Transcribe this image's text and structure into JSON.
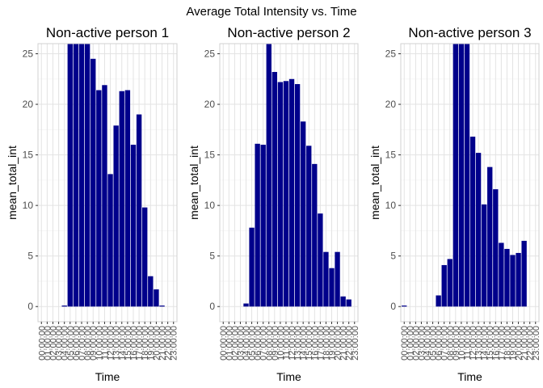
{
  "figure_title": "Average Total Intensity vs. Time",
  "chart_data": [
    {
      "type": "bar",
      "title": "Non-active person 1",
      "xlabel": "Time",
      "ylabel": "mean_total_int",
      "ylim": [
        -1.5,
        26
      ],
      "yticks": [
        0,
        5,
        10,
        15,
        20,
        25
      ],
      "bar_color": "#00008B",
      "categories": [
        "00:00:00",
        "01:00:00",
        "02:00:00",
        "03:00:00",
        "04:00:00",
        "05:00:00",
        "06:00:00",
        "07:00:00",
        "08:00:00",
        "09:00:00",
        "10:00:00",
        "11:00:00",
        "12:00:00",
        "13:00:00",
        "14:00:00",
        "15:00:00",
        "16:00:00",
        "17:00:00",
        "18:00:00",
        "19:00:00",
        "20:00:00",
        "21:00:00",
        "22:00:00",
        "23:00:00"
      ],
      "values": [
        0,
        0,
        0,
        0,
        0.1,
        27,
        27,
        27,
        27,
        24.5,
        21.4,
        21.9,
        13.1,
        17.9,
        21.3,
        21.4,
        16.0,
        19.0,
        9.8,
        3.0,
        1.7,
        0.1,
        null,
        null
      ],
      "grid": true
    },
    {
      "type": "bar",
      "title": "Non-active person 2",
      "xlabel": "Time",
      "ylabel": "mean_total_int",
      "ylim": [
        -1.5,
        26
      ],
      "yticks": [
        0,
        5,
        10,
        15,
        20,
        25
      ],
      "bar_color": "#00008B",
      "categories": [
        "00:00:00",
        "01:00:00",
        "02:00:00",
        "03:00:00",
        "04:00:00",
        "05:00:00",
        "06:00:00",
        "07:00:00",
        "08:00:00",
        "09:00:00",
        "10:00:00",
        "11:00:00",
        "12:00:00",
        "13:00:00",
        "14:00:00",
        "15:00:00",
        "16:00:00",
        "17:00:00",
        "18:00:00",
        "19:00:00",
        "20:00:00",
        "21:00:00",
        "22:00:00",
        "23:00:00"
      ],
      "values": [
        0,
        0,
        0,
        0,
        0.3,
        7.8,
        16.1,
        16.0,
        26.5,
        23.2,
        22.2,
        22.3,
        22.5,
        22.0,
        18.3,
        15.9,
        14.1,
        9.2,
        5.4,
        3.8,
        5.4,
        1.0,
        0.7,
        null
      ],
      "grid": true
    },
    {
      "type": "bar",
      "title": "Non-active person 3",
      "xlabel": "Time",
      "ylabel": "mean_total_int",
      "ylim": [
        -1.5,
        26
      ],
      "yticks": [
        0,
        5,
        10,
        15,
        20,
        25
      ],
      "bar_color": "#00008B",
      "categories": [
        "00:00:00",
        "01:00:00",
        "02:00:00",
        "03:00:00",
        "04:00:00",
        "05:00:00",
        "06:00:00",
        "07:00:00",
        "08:00:00",
        "09:00:00",
        "10:00:00",
        "11:00:00",
        "12:00:00",
        "13:00:00",
        "14:00:00",
        "15:00:00",
        "16:00:00",
        "17:00:00",
        "18:00:00",
        "19:00:00",
        "20:00:00",
        "21:00:00",
        "22:00:00",
        "23:00:00"
      ],
      "values": [
        0.1,
        0,
        0,
        0,
        0,
        0,
        1.1,
        4.1,
        4.7,
        27,
        27,
        27,
        16.8,
        15.2,
        10.1,
        13.8,
        11.6,
        6.3,
        5.7,
        5.1,
        5.3,
        6.5,
        null,
        null
      ],
      "grid": true
    }
  ]
}
